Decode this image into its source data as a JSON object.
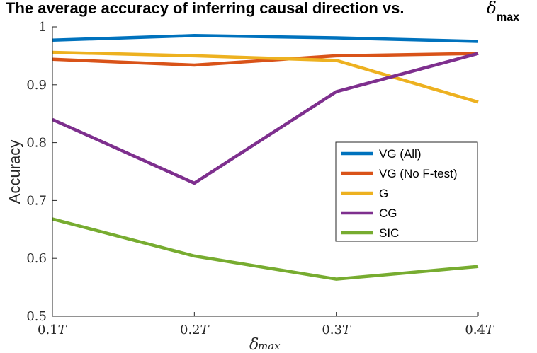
{
  "chart_data": {
    "type": "line",
    "title": "The average accuracy of inferring causal direction vs.",
    "title_symbol": "δ",
    "title_subscript": "max",
    "xlabel_symbol": "δ",
    "xlabel_subscript": "max",
    "ylabel": "Accuracy",
    "x": [
      0.1,
      0.2,
      0.3,
      0.4
    ],
    "x_tick_numbers": [
      "0.1",
      "0.2",
      "0.3",
      "0.4"
    ],
    "x_tick_unit": "T",
    "xlim": [
      0.1,
      0.4
    ],
    "ylim": [
      0.5,
      1.0
    ],
    "y_ticks": [
      0.5,
      0.6,
      0.7,
      0.8,
      0.9,
      1.0
    ],
    "y_tick_labels": [
      "0.5",
      "0.6",
      "0.7",
      "0.8",
      "0.9",
      "1"
    ],
    "grid": false,
    "legend_position": "right",
    "series": [
      {
        "name": "VG (All)",
        "color": "#0072BD",
        "values": [
          0.977,
          0.985,
          0.981,
          0.975
        ]
      },
      {
        "name": "VG (No F-test)",
        "color": "#D95319",
        "values": [
          0.944,
          0.934,
          0.95,
          0.954
        ]
      },
      {
        "name": "G",
        "color": "#EDB120",
        "values": [
          0.956,
          0.95,
          0.942,
          0.87
        ]
      },
      {
        "name": "CG",
        "color": "#7E2F8E",
        "values": [
          0.84,
          0.73,
          0.888,
          0.954
        ]
      },
      {
        "name": "SIC",
        "color": "#77AC30",
        "values": [
          0.668,
          0.604,
          0.564,
          0.586
        ]
      }
    ]
  }
}
